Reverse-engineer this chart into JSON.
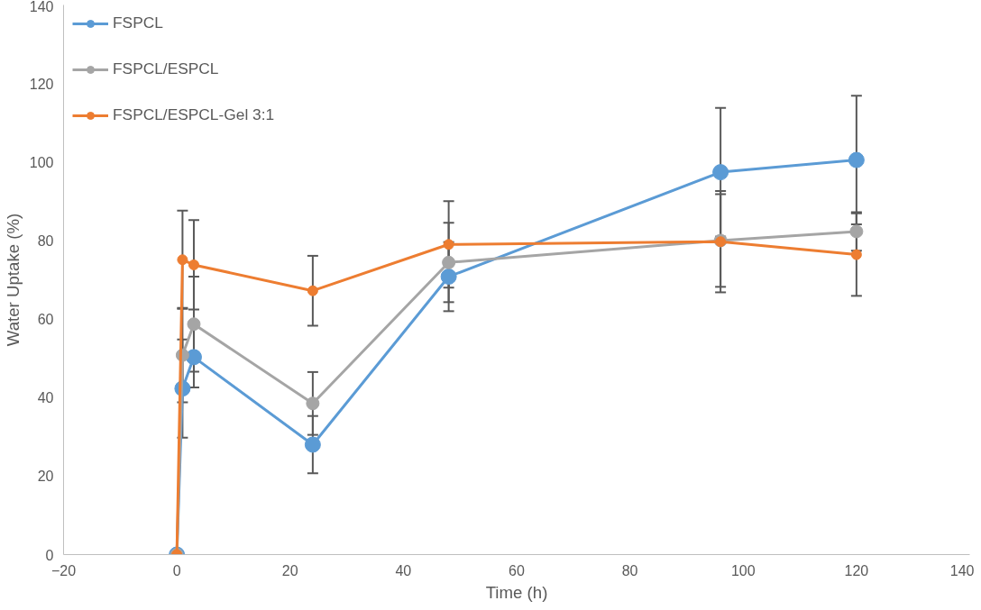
{
  "chart_data": {
    "type": "line",
    "xlabel": "Time (h)",
    "ylabel": "Water Uptake (%)",
    "xlim": [
      -20,
      140
    ],
    "xticks": [
      -20,
      0,
      20,
      40,
      60,
      80,
      100,
      120,
      140
    ],
    "ylim": [
      0,
      140
    ],
    "yticks": [
      0,
      20,
      40,
      60,
      80,
      100,
      120,
      140
    ],
    "x": [
      0,
      1,
      3,
      24,
      48,
      96,
      120
    ],
    "grid": false,
    "legend": "top left",
    "marker": "circle",
    "line_style": "solid",
    "series": [
      {
        "name": "FSPCL",
        "color": "#5b9bd5",
        "values": [
          0,
          42.3,
          50.3,
          28,
          70.8,
          97.4,
          100.5
        ],
        "errors": [
          null,
          12.5,
          7.7,
          7.3,
          8.8,
          16.4,
          16.4
        ]
      },
      {
        "name": "FSPCL/ESPCL",
        "color": "#a5a5a5",
        "values": [
          0,
          50.8,
          58.7,
          38.5,
          74.4,
          80,
          82.3
        ],
        "errors": [
          null,
          12,
          12.1,
          8,
          10.1,
          11.8,
          4.9
        ]
      },
      {
        "name": "FSPCL/ESPCL-Gel 3:1",
        "color": "#ed7d31",
        "values": [
          0,
          75.1,
          73.8,
          67.2,
          79,
          79.7,
          76.4
        ],
        "errors": [
          null,
          12.5,
          11.4,
          8.9,
          11,
          12.9,
          10.5
        ]
      }
    ]
  }
}
